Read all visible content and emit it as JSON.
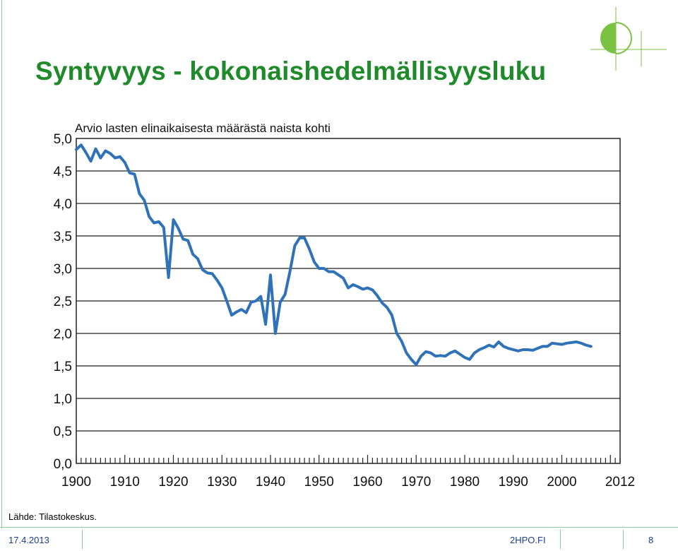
{
  "slide": {
    "title": "Syntyvyys - kokonaishedelmällisyysluku",
    "source": "Lähde: Tilastokeskus."
  },
  "footer": {
    "date": "17.4.2013",
    "site": "2HPO.FI",
    "page": "8"
  },
  "colors": {
    "title": "#1f8a2a",
    "line": "#2f72b8",
    "accent_green": "#7cc242",
    "footer_text": "#1a3f8c"
  },
  "logo": {
    "icon": "half-circle-logo-icon"
  },
  "chart_data": {
    "type": "line",
    "title": "Arvio lasten elinaikaisesta määrästä naista kohti",
    "xlabel": "",
    "ylabel": "",
    "xlim": [
      1900,
      2012
    ],
    "ylim": [
      0,
      5
    ],
    "x_tick_labels": [
      "1900",
      "1910",
      "1920",
      "1930",
      "1940",
      "1950",
      "1960",
      "1970",
      "1980",
      "1990",
      "2000",
      "2012"
    ],
    "x_tick_values": [
      1900,
      1910,
      1920,
      1930,
      1940,
      1950,
      1960,
      1970,
      1980,
      1990,
      2000,
      2012
    ],
    "y_tick_labels": [
      "5,0",
      "4,5",
      "4,0",
      "3,5",
      "3,0",
      "2,5",
      "2,0",
      "1,5",
      "1,0",
      "0,5",
      "0,0"
    ],
    "y_tick_values": [
      5,
      4.5,
      4,
      3.5,
      3,
      2.5,
      2,
      1.5,
      1,
      0.5,
      0
    ],
    "grid": true,
    "series": [
      {
        "values": [
          [
            1900,
            4.83
          ],
          [
            1901,
            4.9
          ],
          [
            1902,
            4.78
          ],
          [
            1903,
            4.65
          ],
          [
            1904,
            4.84
          ],
          [
            1905,
            4.7
          ],
          [
            1906,
            4.81
          ],
          [
            1907,
            4.77
          ],
          [
            1908,
            4.7
          ],
          [
            1909,
            4.72
          ],
          [
            1910,
            4.63
          ],
          [
            1911,
            4.47
          ],
          [
            1912,
            4.45
          ],
          [
            1913,
            4.15
          ],
          [
            1914,
            4.05
          ],
          [
            1915,
            3.8
          ],
          [
            1916,
            3.7
          ],
          [
            1917,
            3.72
          ],
          [
            1918,
            3.63
          ],
          [
            1919,
            2.86
          ],
          [
            1920,
            3.75
          ],
          [
            1921,
            3.62
          ],
          [
            1922,
            3.45
          ],
          [
            1923,
            3.43
          ],
          [
            1924,
            3.22
          ],
          [
            1925,
            3.15
          ],
          [
            1926,
            2.98
          ],
          [
            1927,
            2.93
          ],
          [
            1928,
            2.92
          ],
          [
            1929,
            2.82
          ],
          [
            1930,
            2.7
          ],
          [
            1931,
            2.5
          ],
          [
            1932,
            2.28
          ],
          [
            1933,
            2.33
          ],
          [
            1934,
            2.37
          ],
          [
            1935,
            2.32
          ],
          [
            1936,
            2.48
          ],
          [
            1937,
            2.5
          ],
          [
            1938,
            2.57
          ],
          [
            1939,
            2.14
          ],
          [
            1940,
            2.9
          ],
          [
            1941,
            2.0
          ],
          [
            1942,
            2.48
          ],
          [
            1943,
            2.6
          ],
          [
            1944,
            2.95
          ],
          [
            1945,
            3.35
          ],
          [
            1946,
            3.47
          ],
          [
            1947,
            3.47
          ],
          [
            1948,
            3.3
          ],
          [
            1949,
            3.1
          ],
          [
            1950,
            3.0
          ],
          [
            1951,
            3.0
          ],
          [
            1952,
            2.95
          ],
          [
            1953,
            2.95
          ],
          [
            1954,
            2.9
          ],
          [
            1955,
            2.85
          ],
          [
            1956,
            2.7
          ],
          [
            1957,
            2.75
          ],
          [
            1958,
            2.72
          ],
          [
            1959,
            2.68
          ],
          [
            1960,
            2.7
          ],
          [
            1961,
            2.67
          ],
          [
            1962,
            2.58
          ],
          [
            1963,
            2.47
          ],
          [
            1964,
            2.4
          ],
          [
            1965,
            2.28
          ],
          [
            1966,
            2.0
          ],
          [
            1967,
            1.88
          ],
          [
            1968,
            1.7
          ],
          [
            1969,
            1.6
          ],
          [
            1970,
            1.52
          ],
          [
            1971,
            1.65
          ],
          [
            1972,
            1.72
          ],
          [
            1973,
            1.7
          ],
          [
            1974,
            1.65
          ],
          [
            1975,
            1.66
          ],
          [
            1976,
            1.65
          ],
          [
            1977,
            1.7
          ],
          [
            1978,
            1.73
          ],
          [
            1979,
            1.68
          ],
          [
            1980,
            1.63
          ],
          [
            1981,
            1.6
          ],
          [
            1982,
            1.7
          ],
          [
            1983,
            1.75
          ],
          [
            1984,
            1.78
          ],
          [
            1985,
            1.82
          ],
          [
            1986,
            1.79
          ],
          [
            1987,
            1.87
          ],
          [
            1988,
            1.8
          ],
          [
            1989,
            1.77
          ],
          [
            1990,
            1.75
          ],
          [
            1991,
            1.73
          ],
          [
            1992,
            1.75
          ],
          [
            1993,
            1.75
          ],
          [
            1994,
            1.74
          ],
          [
            1995,
            1.77
          ],
          [
            1996,
            1.8
          ],
          [
            1997,
            1.8
          ],
          [
            1998,
            1.85
          ],
          [
            1999,
            1.84
          ],
          [
            2000,
            1.83
          ],
          [
            2001,
            1.85
          ],
          [
            2002,
            1.86
          ],
          [
            2003,
            1.87
          ],
          [
            2004,
            1.85
          ],
          [
            2005,
            1.82
          ],
          [
            2006,
            1.8
          ]
        ]
      }
    ]
  }
}
